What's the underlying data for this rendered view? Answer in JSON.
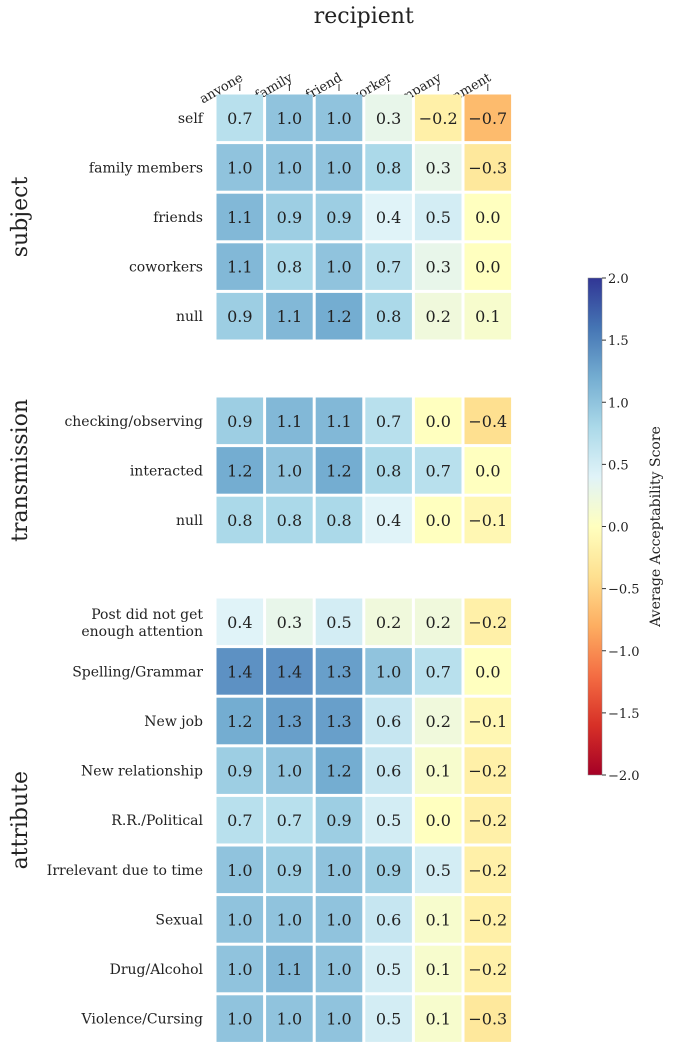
{
  "chart_data": {
    "type": "heatmap",
    "xlabel": "recipient",
    "columns": [
      "anyone",
      "family",
      "friend",
      "coworker",
      "company",
      "government"
    ],
    "groups": [
      {
        "name": "subject",
        "rows": [
          {
            "label": "self",
            "values": [
              0.7,
              1.0,
              1.0,
              0.3,
              -0.2,
              -0.7
            ]
          },
          {
            "label": "family members",
            "values": [
              1.0,
              1.0,
              1.0,
              0.8,
              0.3,
              -0.3
            ]
          },
          {
            "label": "friends",
            "values": [
              1.1,
              0.9,
              0.9,
              0.4,
              0.5,
              0.0
            ]
          },
          {
            "label": "coworkers",
            "values": [
              1.1,
              0.8,
              1.0,
              0.7,
              0.3,
              -0.0
            ]
          },
          {
            "label": "null",
            "values": [
              0.9,
              1.1,
              1.2,
              0.8,
              0.2,
              0.1
            ]
          }
        ]
      },
      {
        "name": "transmission",
        "rows": [
          {
            "label": "checking/observing",
            "values": [
              0.9,
              1.1,
              1.1,
              0.7,
              -0.0,
              -0.4
            ]
          },
          {
            "label": "interacted",
            "values": [
              1.2,
              1.0,
              1.2,
              0.8,
              0.7,
              -0.0
            ]
          },
          {
            "label": "null",
            "values": [
              0.8,
              0.8,
              0.8,
              0.4,
              0.0,
              -0.1
            ]
          }
        ]
      },
      {
        "name": "attribute",
        "rows": [
          {
            "label": [
              "Post did not get",
              "enough attention"
            ],
            "values": [
              0.4,
              0.3,
              0.5,
              0.2,
              0.2,
              -0.2
            ]
          },
          {
            "label": "Spelling/Grammar",
            "values": [
              1.4,
              1.4,
              1.3,
              1.0,
              0.7,
              0.0
            ]
          },
          {
            "label": "New job",
            "values": [
              1.2,
              1.3,
              1.3,
              0.6,
              0.2,
              -0.1
            ]
          },
          {
            "label": "New relationship",
            "values": [
              0.9,
              1.0,
              1.2,
              0.6,
              0.1,
              -0.2
            ]
          },
          {
            "label": "R.R./Political",
            "values": [
              0.7,
              0.7,
              0.9,
              0.5,
              0.0,
              -0.2
            ]
          },
          {
            "label": "Irrelevant due to time",
            "values": [
              1.0,
              0.9,
              1.0,
              0.9,
              0.5,
              -0.2
            ]
          },
          {
            "label": "Sexual",
            "values": [
              1.0,
              1.0,
              1.0,
              0.6,
              0.1,
              -0.2
            ]
          },
          {
            "label": "Drug/Alcohol",
            "values": [
              1.0,
              1.1,
              1.0,
              0.5,
              0.1,
              -0.2
            ]
          },
          {
            "label": "Violence/Cursing",
            "values": [
              1.0,
              1.0,
              1.0,
              0.5,
              0.1,
              -0.3
            ]
          }
        ]
      }
    ],
    "colorbar": {
      "label": "Average Acceptability Score",
      "range": [
        -2.0,
        2.0
      ],
      "ticks": [
        "2.0",
        "1.5",
        "1.0",
        "0.5",
        "0.0",
        "−0.5",
        "−1.0",
        "−1.5",
        "−2.0"
      ],
      "colormap": "RdYlBu",
      "stops": [
        "#a50026",
        "#d73027",
        "#f46d43",
        "#fdae61",
        "#fee090",
        "#ffffbf",
        "#e0f3f8",
        "#abd9e9",
        "#74add1",
        "#4575b4",
        "#313695"
      ]
    }
  }
}
